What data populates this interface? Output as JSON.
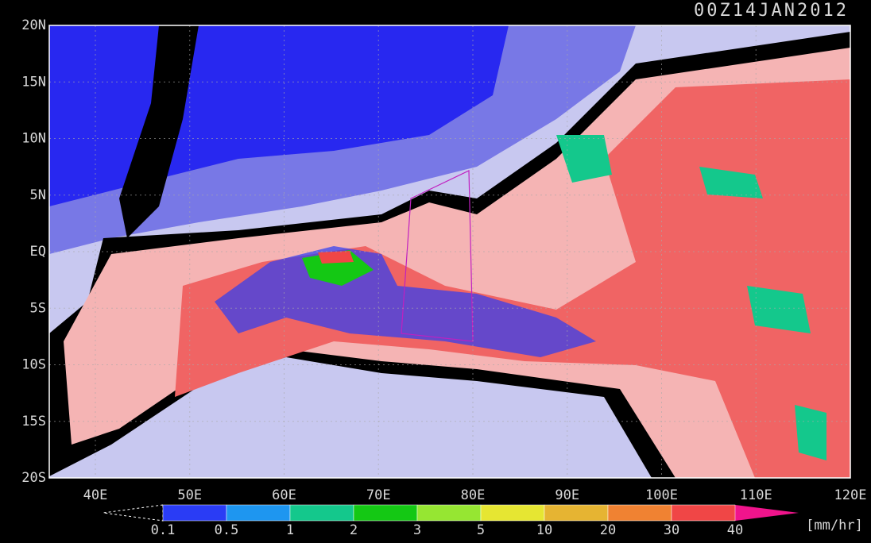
{
  "header": {
    "title": "00Z14JAN2012"
  },
  "map": {
    "lat_labels": [
      "20N",
      "15N",
      "10N",
      "5N",
      "EQ",
      "5S",
      "10S",
      "15S",
      "20S"
    ],
    "lon_labels": [
      "40E",
      "50E",
      "60E",
      "70E",
      "80E",
      "90E",
      "100E",
      "110E",
      "120E"
    ]
  },
  "colorbar": {
    "labels": [
      "0.1",
      "0.5",
      "1",
      "2",
      "3",
      "5",
      "10",
      "20",
      "30",
      "40"
    ],
    "colors": [
      "#2a3cf5",
      "#1e96f0",
      "#14c88c",
      "#14c814",
      "#96e632",
      "#e6e632",
      "#e6b432",
      "#f08232",
      "#f04646"
    ],
    "unit": "[mm/hr]"
  }
}
